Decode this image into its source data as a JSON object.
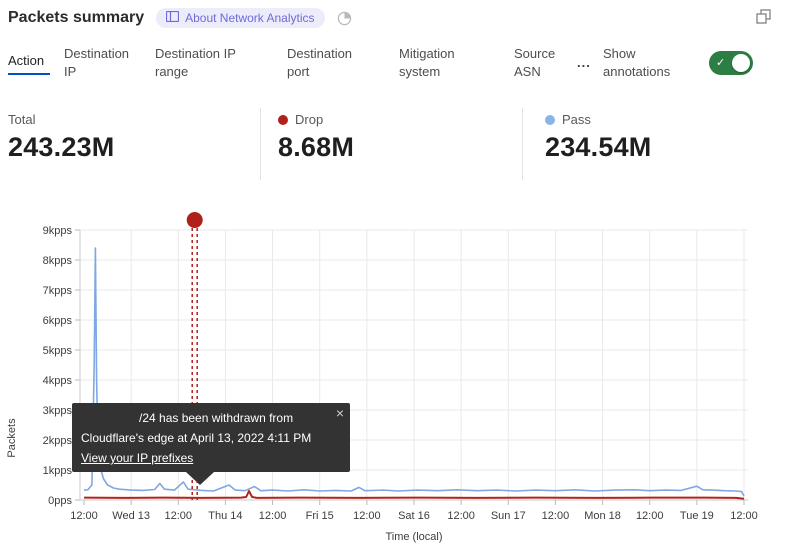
{
  "header": {
    "title": "Packets summary",
    "about_badge": "About Network Analytics"
  },
  "tabs": {
    "items": [
      {
        "label": "Action",
        "active": true
      },
      {
        "label": "Destination IP",
        "active": false
      },
      {
        "label": "Destination IP range",
        "active": false
      },
      {
        "label": "Destination port",
        "active": false
      },
      {
        "label": "Mitigation system",
        "active": false
      },
      {
        "label": "Source ASN",
        "active": false
      }
    ],
    "more_label": "...",
    "annotations_toggle": {
      "label": "Show annotations",
      "state": "on"
    }
  },
  "stats": {
    "items": [
      {
        "label": "Total",
        "value": "243.23M",
        "dot_color": ""
      },
      {
        "label": "Drop",
        "value": "8.68M",
        "dot_color": "#b0211c"
      },
      {
        "label": "Pass",
        "value": "234.54M",
        "dot_color": "#8ab3e8"
      }
    ]
  },
  "annotation_tooltip": {
    "line1": "/24 has been withdrawn from",
    "line2": "Cloudflare's edge at April 13, 2022 4:11 PM",
    "link": "View your IP prefixes",
    "close": "×"
  },
  "colors": {
    "active_tab_underline": "#0051c3",
    "toggle_on_green": "#2d7e44",
    "drop_red": "#b0211c",
    "pass_blue": "#8ab3e8",
    "badge_purple": "#6f6bd8"
  },
  "chart_data": {
    "type": "line",
    "xlabel": "Time (local)",
    "ylabel": "Packets",
    "y_ticks": [
      "0pps",
      "1kpps",
      "2kpps",
      "3kpps",
      "4kpps",
      "5kpps",
      "6kpps",
      "7kpps",
      "8kpps",
      "9kpps"
    ],
    "x_ticks": [
      "12:00",
      "Wed 13",
      "12:00",
      "Thu 14",
      "12:00",
      "Fri 15",
      "12:00",
      "Sat 16",
      "12:00",
      "Sun 17",
      "12:00",
      "Mon 18",
      "12:00",
      "Tue 19",
      "12:00"
    ],
    "ylim": [
      0,
      9
    ],
    "x_hours_range": [
      0,
      168
    ],
    "grid": true,
    "series": [
      {
        "name": "Pass",
        "color": "#7fa8e2",
        "width": 1.6,
        "points": [
          [
            0,
            0.33
          ],
          [
            1,
            0.34
          ],
          [
            2,
            0.5
          ],
          [
            2.6,
            4.5
          ],
          [
            2.9,
            8.4
          ],
          [
            3.2,
            4.0
          ],
          [
            3.6,
            1.6
          ],
          [
            4.2,
            1.05
          ],
          [
            5,
            0.7
          ],
          [
            6,
            0.5
          ],
          [
            7.5,
            0.4
          ],
          [
            9,
            0.36
          ],
          [
            12,
            0.33
          ],
          [
            15,
            0.32
          ],
          [
            18,
            0.35
          ],
          [
            19.3,
            0.55
          ],
          [
            20.5,
            0.36
          ],
          [
            23,
            0.33
          ],
          [
            25.3,
            0.6
          ],
          [
            26.5,
            0.36
          ],
          [
            30,
            0.32
          ],
          [
            33,
            0.3
          ],
          [
            36.9,
            0.5
          ],
          [
            38.5,
            0.33
          ],
          [
            41,
            0.31
          ],
          [
            43.4,
            0.45
          ],
          [
            45,
            0.31
          ],
          [
            48,
            0.33
          ],
          [
            52,
            0.3
          ],
          [
            56,
            0.34
          ],
          [
            60,
            0.3
          ],
          [
            64,
            0.32
          ],
          [
            68,
            0.3
          ],
          [
            70,
            0.42
          ],
          [
            71.5,
            0.31
          ],
          [
            76,
            0.33
          ],
          [
            80,
            0.3
          ],
          [
            85,
            0.33
          ],
          [
            90,
            0.31
          ],
          [
            95,
            0.34
          ],
          [
            100,
            0.31
          ],
          [
            105,
            0.33
          ],
          [
            110,
            0.3
          ],
          [
            115,
            0.33
          ],
          [
            120,
            0.31
          ],
          [
            125,
            0.34
          ],
          [
            130,
            0.3
          ],
          [
            135,
            0.33
          ],
          [
            140,
            0.34
          ],
          [
            144,
            0.31
          ],
          [
            148,
            0.33
          ],
          [
            152,
            0.32
          ],
          [
            156,
            0.46
          ],
          [
            157.5,
            0.34
          ],
          [
            160,
            0.33
          ],
          [
            163,
            0.31
          ],
          [
            166,
            0.3
          ],
          [
            167.4,
            0.28
          ],
          [
            168,
            0.13
          ]
        ]
      },
      {
        "name": "Drop",
        "color": "#b0241e",
        "width": 2,
        "points": [
          [
            0,
            0.08
          ],
          [
            10,
            0.07
          ],
          [
            20,
            0.08
          ],
          [
            30,
            0.07
          ],
          [
            40,
            0.08
          ],
          [
            41.3,
            0.1
          ],
          [
            42,
            0.3
          ],
          [
            42.8,
            0.1
          ],
          [
            44,
            0.07
          ],
          [
            55,
            0.08
          ],
          [
            70,
            0.07
          ],
          [
            85,
            0.08
          ],
          [
            100,
            0.07
          ],
          [
            115,
            0.08
          ],
          [
            130,
            0.07
          ],
          [
            145,
            0.08
          ],
          [
            158,
            0.08
          ],
          [
            166,
            0.07
          ],
          [
            168,
            0.04
          ]
        ]
      }
    ],
    "annotation": {
      "x_hours": 28.18,
      "color": "#b0211c",
      "style": "double-dashed",
      "marker": "dot"
    }
  }
}
